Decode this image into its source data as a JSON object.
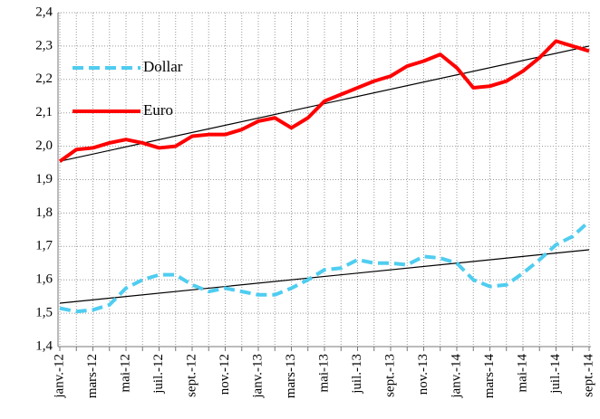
{
  "chart_data": {
    "type": "line",
    "categories": [
      "janv.-12",
      null,
      "mars-12",
      null,
      "mai-12",
      null,
      "juil.-12",
      null,
      "sept.-12",
      null,
      "nov.-12",
      null,
      "janv.-13",
      null,
      "mars-13",
      null,
      "mai-13",
      null,
      "juil.-13",
      null,
      "sept.-13",
      null,
      "nov.-13",
      null,
      "janv.-14",
      null,
      "mars-14",
      null,
      "mai-14",
      null,
      "juil.-14",
      null,
      "sept.-14"
    ],
    "series": [
      {
        "name": "Dollar",
        "color": "#4fcdf0",
        "dashed": true,
        "values": [
          1.515,
          1.505,
          1.51,
          1.525,
          1.575,
          1.6,
          1.615,
          1.615,
          1.585,
          1.565,
          1.575,
          1.565,
          1.555,
          1.555,
          1.575,
          1.6,
          1.63,
          1.635,
          1.66,
          1.65,
          1.65,
          1.645,
          1.67,
          1.665,
          1.65,
          1.6,
          1.58,
          1.585,
          1.62,
          1.66,
          1.705,
          1.73,
          1.775
        ],
        "trend": [
          1.53,
          1.69
        ]
      },
      {
        "name": "Euro",
        "color": "#ff0000",
        "dashed": false,
        "values": [
          1.955,
          1.99,
          1.995,
          2.01,
          2.02,
          2.01,
          1.995,
          2.0,
          2.03,
          2.035,
          2.035,
          2.05,
          2.075,
          2.085,
          2.055,
          2.085,
          2.135,
          2.155,
          2.175,
          2.195,
          2.21,
          2.24,
          2.255,
          2.275,
          2.235,
          2.175,
          2.18,
          2.195,
          2.225,
          2.265,
          2.315,
          2.3,
          2.285
        ],
        "trend": [
          1.955,
          2.3
        ]
      }
    ],
    "ylim": [
      1.4,
      2.4
    ],
    "yticks": [
      {
        "value": 1.4,
        "label": "1,4"
      },
      {
        "value": 1.5,
        "label": "1,5"
      },
      {
        "value": 1.6,
        "label": "1,6"
      },
      {
        "value": 1.7,
        "label": "1,7"
      },
      {
        "value": 1.8,
        "label": "1,8"
      },
      {
        "value": 1.9,
        "label": "1,9"
      },
      {
        "value": 2.0,
        "label": "2,0"
      },
      {
        "value": 2.1,
        "label": "2,1"
      },
      {
        "value": 2.2,
        "label": "2,2"
      },
      {
        "value": 2.3,
        "label": "2,3"
      },
      {
        "value": 2.4,
        "label": "2,4"
      }
    ],
    "grid": true,
    "legend": "top-left"
  }
}
